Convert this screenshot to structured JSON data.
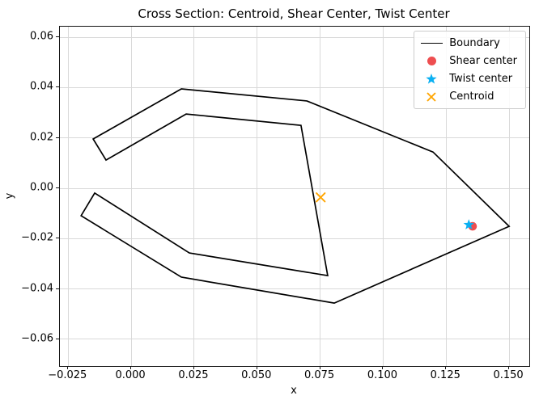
{
  "chart_data": {
    "type": "line",
    "title": "Cross Section: Centroid, Shear Center, Twist Center",
    "xlabel": "x",
    "ylabel": "y",
    "xlim": [
      -0.0283,
      0.158
    ],
    "ylim": [
      -0.0706,
      0.0642
    ],
    "grid": true,
    "legend_position": "upper right",
    "x_ticks": [
      -0.025,
      0.0,
      0.025,
      0.05,
      0.075,
      0.1,
      0.125,
      0.15
    ],
    "x_tick_labels": [
      "−0.025",
      "0.000",
      "0.025",
      "0.050",
      "0.075",
      "0.100",
      "0.125",
      "0.150"
    ],
    "y_ticks": [
      0.06,
      0.04,
      0.02,
      0.0,
      -0.02,
      -0.04,
      -0.06
    ],
    "y_tick_labels": [
      "0.06",
      "0.04",
      "0.02",
      "0.00",
      "−0.02",
      "−0.04",
      "−0.06"
    ],
    "series": [
      {
        "name": "Boundary",
        "kind": "line",
        "color": "#000000",
        "closed": true,
        "points": [
          [
            -0.0151,
            0.0196
          ],
          [
            0.0199,
            0.0395
          ],
          [
            0.0697,
            0.0347
          ],
          [
            0.1198,
            0.0144
          ],
          [
            0.15,
            -0.0151
          ],
          [
            0.0806,
            -0.0456
          ],
          [
            0.0199,
            -0.0353
          ],
          [
            -0.0199,
            -0.0109
          ],
          [
            -0.0145,
            -0.0019
          ],
          [
            0.0231,
            -0.0257
          ],
          [
            0.078,
            -0.0347
          ],
          [
            0.0674,
            0.025
          ],
          [
            0.0218,
            0.0295
          ],
          [
            -0.01,
            0.0112
          ]
        ]
      },
      {
        "name": "Shear center",
        "kind": "scatter",
        "marker": "circle",
        "color": "#ee4e50",
        "points": [
          [
            0.1355,
            -0.0151
          ]
        ]
      },
      {
        "name": "Twist center",
        "kind": "scatter",
        "marker": "star",
        "color": "#0ab0f2",
        "points": [
          [
            0.134,
            -0.0145
          ]
        ]
      },
      {
        "name": "Centroid",
        "kind": "scatter",
        "marker": "x",
        "color": "#ffa500",
        "points": [
          [
            0.0752,
            -0.0036
          ]
        ]
      }
    ]
  }
}
